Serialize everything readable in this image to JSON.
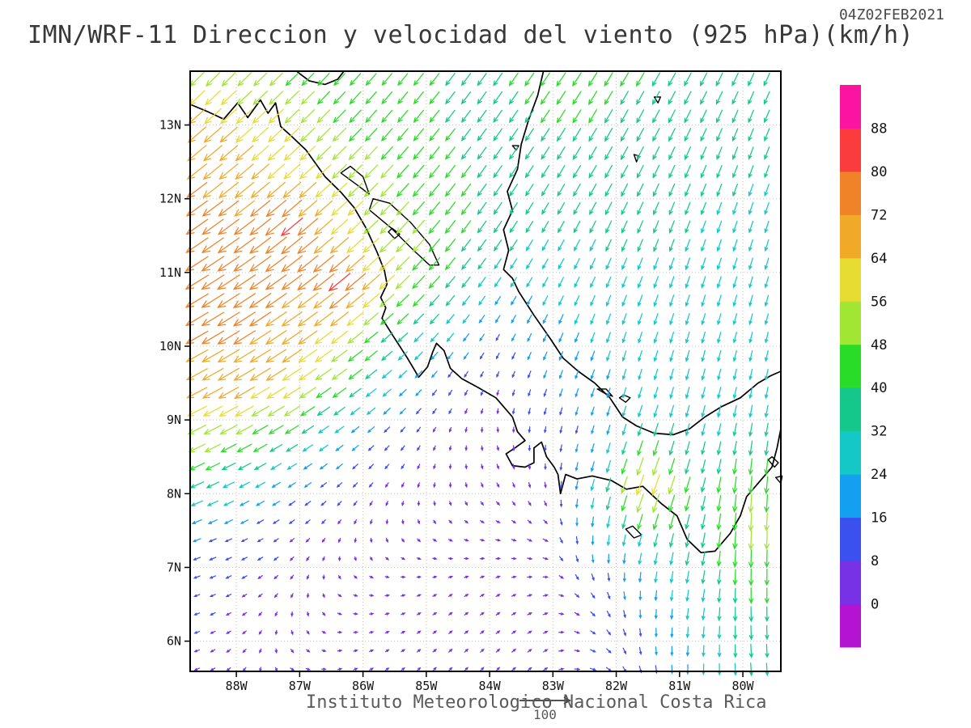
{
  "header": {
    "timestamp": "04Z02FEB2021",
    "title": "IMN/WRF-11 Direccion y velocidad del viento (925 hPa)(km/h)"
  },
  "footer": {
    "institute": "Instituto Meteorologico Nacional Costa Rica",
    "reference_value": "100"
  },
  "axes": {
    "x_tick_labels": [
      "88W",
      "87W",
      "86W",
      "85W",
      "84W",
      "83W",
      "82W",
      "81W",
      "80W"
    ],
    "x_tick_lons_w": [
      88,
      87,
      86,
      85,
      84,
      83,
      82,
      81,
      80
    ],
    "y_tick_labels": [
      "13N",
      "12N",
      "11N",
      "10N",
      "9N",
      "8N",
      "7N",
      "6N"
    ],
    "y_tick_lats": [
      13,
      12,
      11,
      10,
      9,
      8,
      7,
      6
    ],
    "lon_w_range": [
      88.73,
      79.4
    ],
    "lat_range": [
      5.59,
      13.73
    ]
  },
  "colorbar": {
    "labels_top_to_bottom": [
      "88",
      "80",
      "72",
      "64",
      "56",
      "48",
      "40",
      "32",
      "24",
      "16",
      "8",
      "0"
    ],
    "segment_colors_bottom_to_top": [
      "#b414d2",
      "#7832e6",
      "#3c50f0",
      "#14a0f0",
      "#14c8c8",
      "#14c88c",
      "#28dc28",
      "#a0e632",
      "#e6dc32",
      "#f0aa28",
      "#f08228",
      "#fa3c3c",
      "#fa14a0"
    ]
  },
  "chart_data": {
    "type": "vector_field",
    "title": "IMN/WRF-11 Direccion y velocidad del viento (925 hPa)(km/h)",
    "units": "km/h",
    "level": "925 hPa",
    "valid_time": "04Z02FEB2021",
    "speed_scale_km_h": [
      0,
      8,
      16,
      24,
      32,
      40,
      48,
      56,
      64,
      72,
      80,
      88
    ],
    "wind_grid": {
      "lon_w": [
        88.7,
        87.9,
        87.1,
        86.3,
        85.5,
        84.7,
        83.9,
        83.1,
        82.3,
        81.5,
        80.7,
        79.9,
        79.4
      ],
      "lat": [
        13.7,
        13.0,
        12.3,
        11.6,
        10.9,
        10.2,
        9.5,
        8.8,
        8.1,
        7.4,
        6.7,
        6.0,
        5.6
      ],
      "speed_km_h": [
        [
          52,
          50,
          46,
          42,
          40,
          40,
          40,
          42,
          42,
          40,
          38,
          36,
          36
        ],
        [
          68,
          62,
          56,
          48,
          42,
          40,
          38,
          40,
          40,
          38,
          36,
          34,
          34
        ],
        [
          72,
          68,
          62,
          55,
          48,
          42,
          38,
          36,
          38,
          36,
          34,
          32,
          32
        ],
        [
          76,
          74,
          82,
          60,
          52,
          44,
          36,
          32,
          34,
          34,
          32,
          30,
          30
        ],
        [
          78,
          76,
          72,
          82,
          55,
          40,
          28,
          26,
          28,
          30,
          30,
          28,
          28
        ],
        [
          74,
          74,
          70,
          58,
          38,
          28,
          14,
          22,
          26,
          28,
          28,
          26,
          26
        ],
        [
          66,
          68,
          62,
          46,
          26,
          12,
          8,
          16,
          22,
          26,
          28,
          26,
          26
        ],
        [
          55,
          50,
          38,
          22,
          12,
          6,
          6,
          10,
          18,
          36,
          30,
          34,
          34
        ],
        [
          38,
          28,
          18,
          11,
          7,
          5,
          6,
          8,
          30,
          66,
          38,
          48,
          46
        ],
        [
          18,
          12,
          8,
          5,
          4,
          4,
          5,
          8,
          22,
          34,
          38,
          52,
          48
        ],
        [
          10,
          8,
          6,
          4,
          4,
          4,
          5,
          6,
          12,
          22,
          30,
          42,
          40
        ],
        [
          8,
          6,
          5,
          4,
          4,
          5,
          6,
          6,
          10,
          16,
          26,
          36,
          34
        ],
        [
          8,
          6,
          5,
          4,
          4,
          5,
          6,
          6,
          10,
          14,
          24,
          32,
          30
        ]
      ],
      "dir_to_deg_compass": [
        [
          225,
          225,
          225,
          222,
          220,
          218,
          215,
          215,
          212,
          210,
          208,
          205,
          205
        ],
        [
          228,
          228,
          226,
          224,
          220,
          218,
          215,
          213,
          210,
          208,
          205,
          202,
          202
        ],
        [
          232,
          230,
          228,
          226,
          222,
          218,
          215,
          212,
          210,
          206,
          202,
          200,
          200
        ],
        [
          235,
          233,
          230,
          228,
          224,
          218,
          214,
          210,
          206,
          202,
          200,
          198,
          198
        ],
        [
          238,
          236,
          233,
          230,
          226,
          220,
          214,
          208,
          204,
          200,
          198,
          196,
          196
        ],
        [
          240,
          238,
          235,
          232,
          228,
          220,
          210,
          205,
          200,
          198,
          196,
          194,
          194
        ],
        [
          242,
          240,
          237,
          234,
          228,
          215,
          200,
          200,
          198,
          196,
          195,
          192,
          192
        ],
        [
          244,
          242,
          238,
          232,
          222,
          200,
          170,
          190,
          196,
          198,
          194,
          190,
          190
        ],
        [
          246,
          242,
          236,
          226,
          210,
          180,
          150,
          170,
          195,
          200,
          195,
          185,
          185
        ],
        [
          248,
          244,
          230,
          200,
          150,
          120,
          100,
          120,
          185,
          195,
          192,
          182,
          182
        ],
        [
          250,
          240,
          210,
          120,
          80,
          60,
          60,
          80,
          150,
          185,
          190,
          180,
          180
        ],
        [
          250,
          230,
          150,
          80,
          60,
          50,
          50,
          60,
          120,
          175,
          185,
          178,
          178
        ],
        [
          250,
          220,
          120,
          70,
          55,
          45,
          45,
          55,
          110,
          170,
          182,
          176,
          176
        ]
      ]
    }
  }
}
